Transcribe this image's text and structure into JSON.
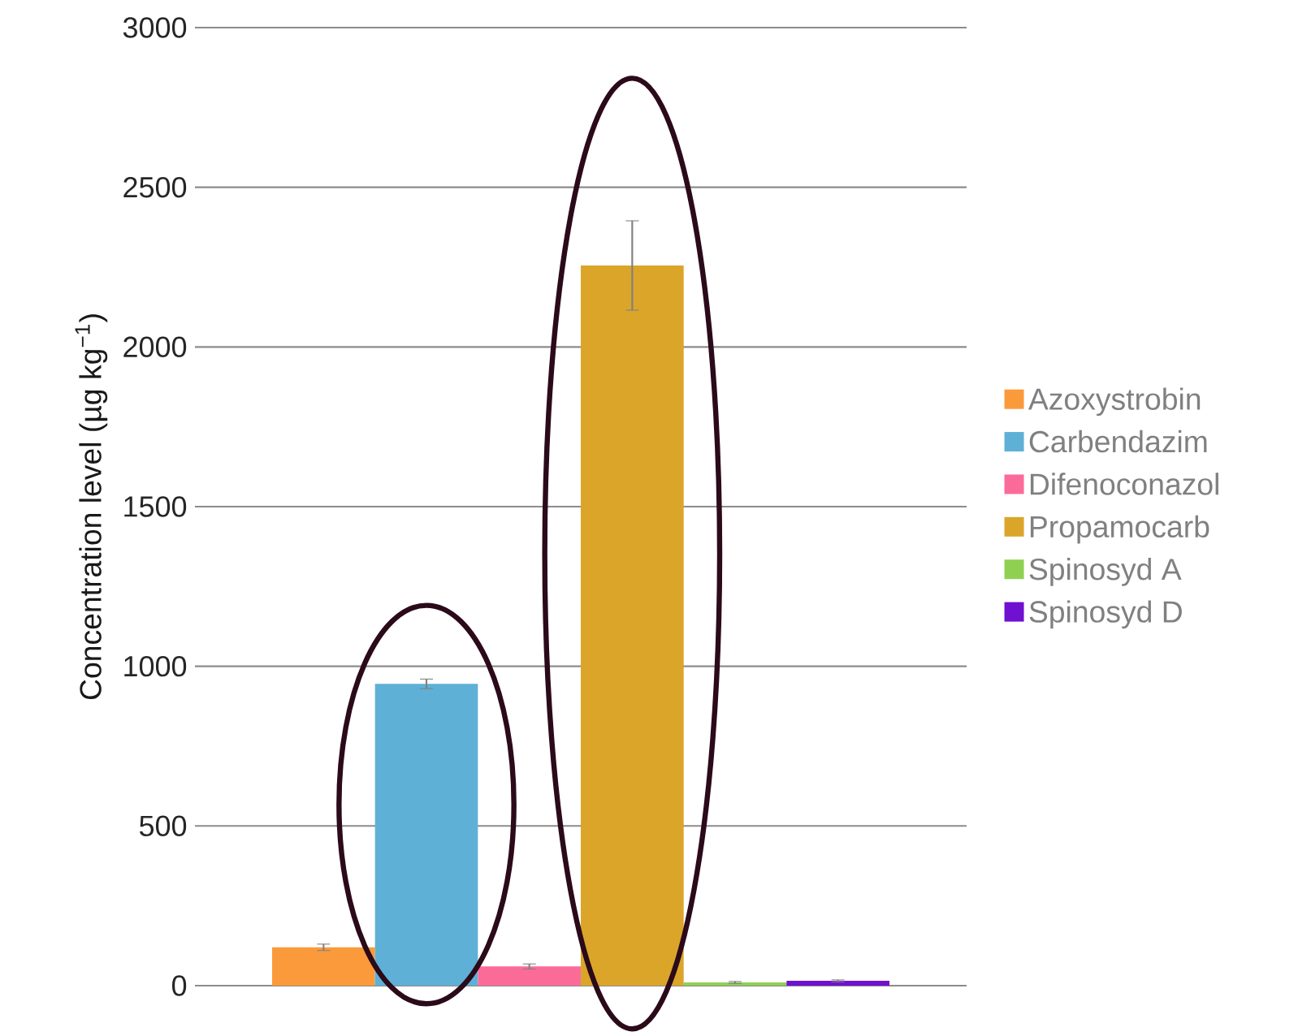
{
  "chart_data": {
    "type": "bar",
    "ylabel": "Concentration level (µg kg$^{−1}$)",
    "categories": [
      null
    ],
    "series": [
      {
        "name": "Azoxystrobin",
        "color": "#fb9a3b",
        "values": [
          120
        ],
        "errors": [
          10
        ]
      },
      {
        "name": "Carbendazim",
        "color": "#5fb0d6",
        "values": [
          945
        ],
        "errors": [
          15
        ]
      },
      {
        "name": "Difenoconazol",
        "color": "#fb6b9a",
        "values": [
          60
        ],
        "errors": [
          8
        ]
      },
      {
        "name": "Propamocarb",
        "color": "#dba52a",
        "values": [
          2255
        ],
        "errors": [
          140
        ]
      },
      {
        "name": "Spinosyd A",
        "color": "#8fd052",
        "values": [
          10
        ],
        "errors": [
          3
        ]
      },
      {
        "name": "Spinosyd D",
        "color": "#7010d0",
        "values": [
          15
        ],
        "errors": [
          3
        ]
      }
    ],
    "ylim": [
      0,
      3000
    ],
    "yticks": [
      0,
      500,
      1000,
      1500,
      2000,
      2500,
      3000
    ],
    "grid": "y",
    "legend": "right"
  }
}
